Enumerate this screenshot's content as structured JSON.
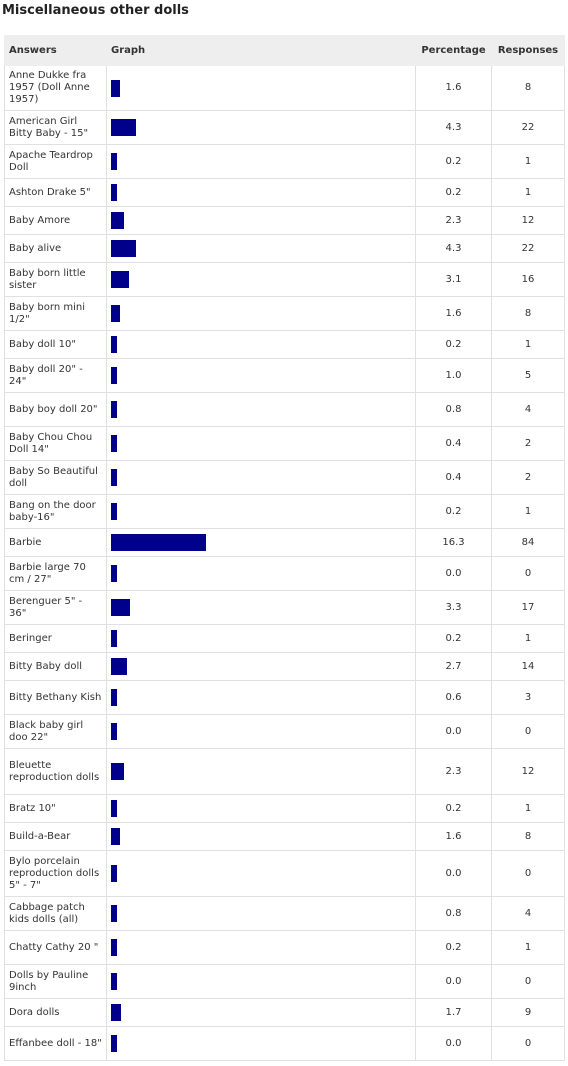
{
  "title": "Miscellaneous other dolls",
  "headers": {
    "answers": "Answers",
    "graph": "Graph",
    "percentage": "Percentage",
    "responses": "Responses"
  },
  "chart_data": {
    "type": "bar",
    "orientation": "horizontal",
    "colors": {
      "bar": "#00008b"
    },
    "rows": [
      {
        "answer": "Anne Dukke fra 1957 (Doll Anne 1957)",
        "percentage": "1.6",
        "responses": "8"
      },
      {
        "answer": "American Girl Bitty Baby - 15\"",
        "percentage": "4.3",
        "responses": "22"
      },
      {
        "answer": "Apache Teardrop Doll",
        "percentage": "0.2",
        "responses": "1"
      },
      {
        "answer": "Ashton Drake 5\"",
        "percentage": "0.2",
        "responses": "1"
      },
      {
        "answer": "Baby Amore",
        "percentage": "2.3",
        "responses": "12"
      },
      {
        "answer": "Baby alive",
        "percentage": "4.3",
        "responses": "22"
      },
      {
        "answer": "Baby born little sister",
        "percentage": "3.1",
        "responses": "16"
      },
      {
        "answer": "Baby born mini 1/2\"",
        "percentage": "1.6",
        "responses": "8"
      },
      {
        "answer": "Baby doll 10\"",
        "percentage": "0.2",
        "responses": "1"
      },
      {
        "answer": "Baby doll 20\" - 24\"",
        "percentage": "1.0",
        "responses": "5"
      },
      {
        "answer": "Baby boy doll 20\"",
        "percentage": "0.8",
        "responses": "4"
      },
      {
        "answer": "Baby Chou Chou Doll 14\"",
        "percentage": "0.4",
        "responses": "2"
      },
      {
        "answer": "Baby So Beautiful doll",
        "percentage": "0.4",
        "responses": "2"
      },
      {
        "answer": "Bang on the door baby-16\"",
        "percentage": "0.2",
        "responses": "1"
      },
      {
        "answer": "Barbie",
        "percentage": "16.3",
        "responses": "84"
      },
      {
        "answer": "Barbie large 70 cm / 27\"",
        "percentage": "0.0",
        "responses": "0"
      },
      {
        "answer": "Berenguer 5\" - 36\"",
        "percentage": "3.3",
        "responses": "17"
      },
      {
        "answer": "Beringer",
        "percentage": "0.2",
        "responses": "1"
      },
      {
        "answer": "Bitty Baby doll",
        "percentage": "2.7",
        "responses": "14"
      },
      {
        "answer": "Bitty Bethany Kish",
        "percentage": "0.6",
        "responses": "3"
      },
      {
        "answer": "Black baby girl doo 22\"",
        "percentage": "0.0",
        "responses": "0"
      },
      {
        "answer": "Bleuette reproduction dolls",
        "percentage": "2.3",
        "responses": "12"
      },
      {
        "answer": "Bratz 10\"",
        "percentage": "0.2",
        "responses": "1"
      },
      {
        "answer": "Build-a-Bear",
        "percentage": "1.6",
        "responses": "8"
      },
      {
        "answer": "Bylo porcelain reproduction dolls 5\" - 7\"",
        "percentage": "0.0",
        "responses": "0"
      },
      {
        "answer": "Cabbage patch kids dolls (all)",
        "percentage": "0.8",
        "responses": "4"
      },
      {
        "answer": "Chatty Cathy 20 \"",
        "percentage": "0.2",
        "responses": "1"
      },
      {
        "answer": "Dolls by Pauline 9inch",
        "percentage": "0.0",
        "responses": "0"
      },
      {
        "answer": "Dora dolls",
        "percentage": "1.7",
        "responses": "9"
      },
      {
        "answer": "Effanbee doll - 18\"",
        "percentage": "0.0",
        "responses": "0"
      }
    ]
  }
}
